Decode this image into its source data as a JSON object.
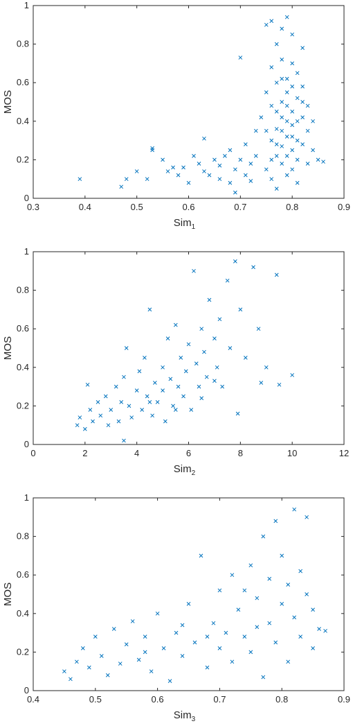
{
  "chart_data": [
    {
      "type": "scatter",
      "ylabel": "MOS",
      "xlabel": "Sim",
      "xlabel_subscript": "1",
      "color": "#0072bd",
      "xlim": [
        0.3,
        0.9
      ],
      "xticks": [
        0.3,
        0.4,
        0.5,
        0.6,
        0.7,
        0.8,
        0.9
      ],
      "ylim": [
        0,
        1
      ],
      "yticks": [
        0,
        0.2,
        0.4,
        0.6,
        0.8,
        1
      ],
      "x": [
        0.39,
        0.47,
        0.48,
        0.5,
        0.52,
        0.53,
        0.53,
        0.55,
        0.56,
        0.57,
        0.58,
        0.59,
        0.6,
        0.61,
        0.62,
        0.63,
        0.63,
        0.64,
        0.65,
        0.66,
        0.66,
        0.67,
        0.68,
        0.68,
        0.69,
        0.69,
        0.7,
        0.7,
        0.71,
        0.71,
        0.72,
        0.72,
        0.73,
        0.73,
        0.74,
        0.75,
        0.75,
        0.75,
        0.76,
        0.76,
        0.76,
        0.76,
        0.77,
        0.77,
        0.77,
        0.77,
        0.77,
        0.78,
        0.78,
        0.78,
        0.78,
        0.78,
        0.78,
        0.79,
        0.79,
        0.79,
        0.79,
        0.79,
        0.79,
        0.8,
        0.8,
        0.8,
        0.8,
        0.8,
        0.8,
        0.81,
        0.81,
        0.81,
        0.81,
        0.81,
        0.82,
        0.82,
        0.82,
        0.82,
        0.83,
        0.83,
        0.83,
        0.84,
        0.84,
        0.85,
        0.86,
        0.78,
        0.79,
        0.77,
        0.8,
        0.76,
        0.81,
        0.79,
        0.78,
        0.77,
        0.8,
        0.82,
        0.75,
        0.76
      ],
      "values": [
        0.1,
        0.06,
        0.1,
        0.14,
        0.1,
        0.25,
        0.26,
        0.2,
        0.14,
        0.16,
        0.12,
        0.16,
        0.08,
        0.22,
        0.18,
        0.31,
        0.14,
        0.12,
        0.2,
        0.17,
        0.1,
        0.22,
        0.08,
        0.25,
        0.15,
        0.03,
        0.2,
        0.73,
        0.12,
        0.28,
        0.18,
        0.09,
        0.35,
        0.22,
        0.42,
        0.9,
        0.15,
        0.55,
        0.92,
        0.3,
        0.68,
        0.1,
        0.45,
        0.8,
        0.22,
        0.6,
        0.05,
        0.35,
        0.5,
        0.72,
        0.18,
        0.88,
        0.27,
        0.4,
        0.62,
        0.12,
        0.94,
        0.32,
        0.55,
        0.25,
        0.45,
        0.7,
        0.15,
        0.85,
        0.38,
        0.3,
        0.52,
        0.65,
        0.2,
        0.08,
        0.42,
        0.78,
        0.28,
        0.58,
        0.18,
        0.35,
        0.48,
        0.25,
        0.4,
        0.2,
        0.19,
        0.42,
        0.48,
        0.36,
        0.58,
        0.48,
        0.4,
        0.22,
        0.62,
        0.28,
        0.32,
        0.5,
        0.35,
        0.2
      ]
    },
    {
      "type": "scatter",
      "ylabel": "MOS",
      "xlabel": "Sim",
      "xlabel_subscript": "2",
      "color": "#0072bd",
      "xlim": [
        0,
        12
      ],
      "xticks": [
        0,
        2,
        4,
        6,
        8,
        10,
        12
      ],
      "ylim": [
        0,
        1
      ],
      "yticks": [
        0,
        0.2,
        0.4,
        0.6,
        0.8,
        1
      ],
      "x": [
        1.7,
        1.8,
        2.0,
        2.1,
        2.2,
        2.3,
        2.5,
        2.6,
        2.8,
        2.9,
        3.0,
        3.2,
        3.3,
        3.4,
        3.5,
        3.5,
        3.6,
        3.7,
        3.8,
        4.0,
        4.1,
        4.2,
        4.3,
        4.4,
        4.5,
        4.6,
        4.7,
        4.8,
        5.0,
        5.0,
        5.1,
        5.2,
        5.3,
        5.4,
        5.5,
        5.6,
        5.7,
        5.8,
        5.9,
        6.0,
        6.1,
        6.2,
        6.3,
        6.4,
        6.5,
        6.6,
        6.7,
        6.8,
        7.0,
        7.1,
        7.2,
        7.3,
        7.5,
        7.6,
        7.8,
        7.9,
        8.0,
        8.2,
        8.5,
        8.7,
        8.8,
        9.0,
        9.4,
        9.5,
        10.0,
        6.5,
        5.5,
        4.5,
        7.0
      ],
      "values": [
        0.1,
        0.14,
        0.08,
        0.31,
        0.18,
        0.12,
        0.22,
        0.15,
        0.25,
        0.1,
        0.18,
        0.3,
        0.12,
        0.22,
        0.02,
        0.35,
        0.5,
        0.2,
        0.14,
        0.28,
        0.38,
        0.18,
        0.45,
        0.25,
        0.7,
        0.15,
        0.32,
        0.22,
        0.4,
        0.28,
        0.12,
        0.55,
        0.34,
        0.2,
        0.62,
        0.3,
        0.45,
        0.25,
        0.38,
        0.52,
        0.18,
        0.9,
        0.42,
        0.3,
        0.6,
        0.48,
        0.35,
        0.75,
        0.55,
        0.4,
        0.65,
        0.3,
        0.85,
        0.5,
        0.95,
        0.16,
        0.7,
        0.45,
        0.92,
        0.6,
        0.32,
        0.4,
        0.88,
        0.31,
        0.36,
        0.24,
        0.18,
        0.22,
        0.33
      ]
    },
    {
      "type": "scatter",
      "ylabel": "MOS",
      "xlabel": "Sim",
      "xlabel_subscript": "3",
      "color": "#0072bd",
      "xlim": [
        0.4,
        0.9
      ],
      "xticks": [
        0.4,
        0.5,
        0.6,
        0.7,
        0.8,
        0.9
      ],
      "ylim": [
        0,
        1
      ],
      "yticks": [
        0,
        0.2,
        0.4,
        0.6,
        0.8,
        1
      ],
      "x": [
        0.45,
        0.46,
        0.47,
        0.48,
        0.49,
        0.5,
        0.51,
        0.52,
        0.53,
        0.54,
        0.55,
        0.56,
        0.57,
        0.58,
        0.59,
        0.6,
        0.61,
        0.62,
        0.63,
        0.64,
        0.65,
        0.66,
        0.67,
        0.68,
        0.69,
        0.7,
        0.7,
        0.71,
        0.72,
        0.72,
        0.73,
        0.74,
        0.75,
        0.75,
        0.76,
        0.77,
        0.77,
        0.78,
        0.78,
        0.79,
        0.79,
        0.8,
        0.8,
        0.81,
        0.81,
        0.82,
        0.82,
        0.83,
        0.83,
        0.84,
        0.84,
        0.85,
        0.85,
        0.86,
        0.87,
        0.74,
        0.76,
        0.68,
        0.64,
        0.58
      ],
      "values": [
        0.1,
        0.06,
        0.15,
        0.22,
        0.12,
        0.28,
        0.18,
        0.08,
        0.32,
        0.14,
        0.24,
        0.36,
        0.16,
        0.28,
        0.1,
        0.4,
        0.22,
        0.05,
        0.3,
        0.18,
        0.45,
        0.25,
        0.7,
        0.12,
        0.35,
        0.52,
        0.22,
        0.3,
        0.6,
        0.15,
        0.42,
        0.28,
        0.65,
        0.2,
        0.48,
        0.8,
        0.07,
        0.35,
        0.58,
        0.88,
        0.25,
        0.45,
        0.7,
        0.15,
        0.55,
        0.94,
        0.38,
        0.62,
        0.28,
        0.9,
        0.5,
        0.22,
        0.42,
        0.32,
        0.31,
        0.52,
        0.33,
        0.28,
        0.34,
        0.2
      ]
    }
  ]
}
